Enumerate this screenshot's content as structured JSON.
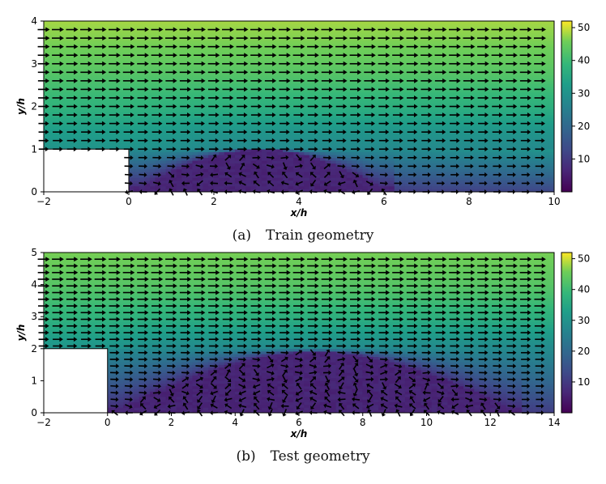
{
  "chart_data": [
    {
      "type": "heatmap",
      "subtype": "velocity-magnitude-with-quiver",
      "xlabel": "x/h",
      "ylabel": "y/h",
      "xlim": [
        -2,
        10
      ],
      "ylim": [
        0,
        4
      ],
      "xticks": [
        -2,
        0,
        2,
        4,
        6,
        8,
        10
      ],
      "yticks": [
        0,
        1,
        2,
        3,
        4
      ],
      "colorbar": {
        "ticks": [
          10,
          20,
          30,
          40,
          50
        ],
        "range": [
          0,
          52
        ],
        "colormap": "viridis"
      },
      "step": {
        "x_from": -2,
        "x_to": 0,
        "height": 1
      },
      "recirculation": {
        "reattach_x": 6.2,
        "max_height": 1.0
      },
      "inlet_profile_speed": [
        {
          "y": 1.0,
          "value": 30
        },
        {
          "y": 1.5,
          "value": 33
        },
        {
          "y": 2.0,
          "value": 38
        },
        {
          "y": 3.0,
          "value": 44
        },
        {
          "y": 4.0,
          "value": 48
        }
      ],
      "grid": false,
      "caption_label": "(a)",
      "caption_text": "Train geometry"
    },
    {
      "type": "heatmap",
      "subtype": "velocity-magnitude-with-quiver",
      "xlabel": "x/h",
      "ylabel": "y/h",
      "xlim": [
        -2,
        14
      ],
      "ylim": [
        0,
        5
      ],
      "xticks": [
        -2,
        0,
        2,
        4,
        6,
        8,
        10,
        12,
        14
      ],
      "yticks": [
        0,
        1,
        2,
        3,
        4,
        5
      ],
      "colorbar": {
        "ticks": [
          10,
          20,
          30,
          40,
          50
        ],
        "range": [
          0,
          52
        ],
        "colormap": "viridis"
      },
      "step": {
        "x_from": -2,
        "x_to": 0,
        "height": 2
      },
      "recirculation": {
        "reattach_x": 13.0,
        "max_height": 1.9
      },
      "inlet_profile_speed": [
        {
          "y": 2.0,
          "value": 30
        },
        {
          "y": 3.0,
          "value": 38
        },
        {
          "y": 4.0,
          "value": 43
        },
        {
          "y": 5.0,
          "value": 46
        }
      ],
      "grid": false,
      "caption_label": "(b)",
      "caption_text": "Test geometry"
    }
  ],
  "captions": [
    {
      "label": "(a)",
      "text": "Train geometry"
    },
    {
      "label": "(b)",
      "text": "Test geometry"
    }
  ]
}
